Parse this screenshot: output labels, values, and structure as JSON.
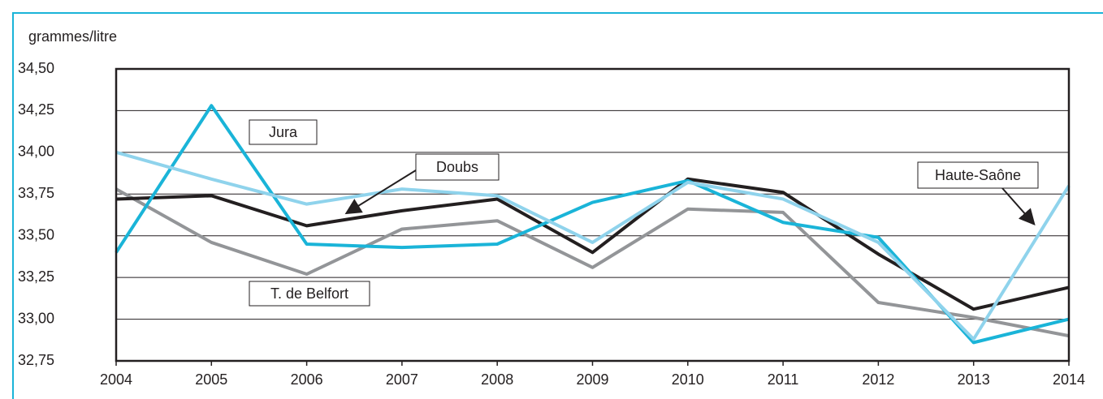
{
  "chart_data": {
    "type": "line",
    "y_axis_label": "grammes/litre",
    "categories": [
      "2004",
      "2005",
      "2006",
      "2007",
      "2008",
      "2009",
      "2010",
      "2011",
      "2012",
      "2013",
      "2014"
    ],
    "series": [
      {
        "name": "T. de Belfort",
        "color": "#939598",
        "values": [
          33.78,
          33.46,
          33.27,
          33.54,
          33.59,
          33.31,
          33.66,
          33.64,
          33.1,
          33.01,
          32.9
        ]
      },
      {
        "name": "Doubs",
        "color": "#231f20",
        "values": [
          33.72,
          33.74,
          33.56,
          33.65,
          33.72,
          33.4,
          33.84,
          33.76,
          33.39,
          33.06,
          33.19
        ]
      },
      {
        "name": "Jura",
        "color": "#1ab4d8",
        "values": [
          33.4,
          34.28,
          33.45,
          33.43,
          33.45,
          33.7,
          33.83,
          33.58,
          33.49,
          32.86,
          33.0
        ]
      },
      {
        "name": "Haute-Saône",
        "color": "#8fd3ec",
        "values": [
          34.0,
          33.84,
          33.69,
          33.78,
          33.74,
          33.46,
          33.82,
          33.72,
          33.46,
          32.88,
          33.8
        ]
      }
    ],
    "ylim": [
      32.75,
      34.5
    ],
    "yticks": [
      {
        "value": 32.75,
        "label": "32,75"
      },
      {
        "value": 33,
        "label": "33,00"
      },
      {
        "value": 33.25,
        "label": "33,25"
      },
      {
        "value": 33.5,
        "label": "33,50"
      },
      {
        "value": 33.75,
        "label": "33,75"
      },
      {
        "value": 34,
        "label": "34,00"
      },
      {
        "value": 34.25,
        "label": "34,25"
      },
      {
        "value": 34.5,
        "label": "34,50"
      }
    ],
    "grid": true
  }
}
